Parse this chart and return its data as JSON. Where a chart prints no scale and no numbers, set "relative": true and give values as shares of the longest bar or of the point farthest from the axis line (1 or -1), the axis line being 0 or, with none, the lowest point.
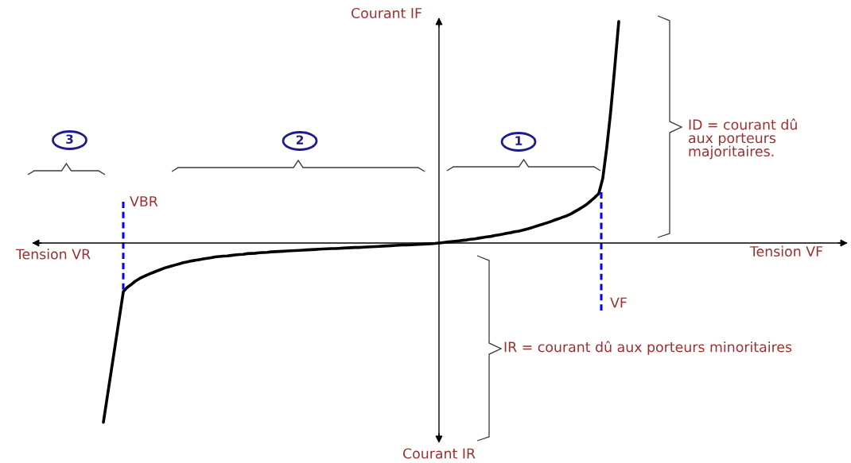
{
  "chart_data": {
    "type": "line",
    "relative": true,
    "ylabel": "Courant IF",
    "categories": [
      null,
      null,
      null,
      null,
      null,
      null,
      null,
      null,
      null,
      null,
      null,
      null,
      null,
      null,
      null,
      null,
      null,
      null,
      null,
      null,
      null,
      null,
      null,
      null,
      null,
      null,
      null,
      null,
      null,
      null,
      null,
      null,
      null,
      null,
      null,
      null,
      null,
      null,
      null,
      null,
      null,
      null,
      null,
      null,
      null,
      null,
      null,
      null,
      null,
      null,
      null,
      null,
      null,
      null,
      null,
      null,
      null,
      null,
      null,
      null,
      null,
      null,
      null,
      null,
      null,
      null,
      null,
      null,
      null,
      null,
      null,
      null,
      null,
      null,
      null,
      null,
      null,
      null,
      null,
      null,
      null,
      null,
      null,
      null,
      null,
      null,
      null,
      null,
      null,
      null,
      null,
      null,
      null,
      null,
      null,
      null,
      null,
      null,
      null,
      null,
      null,
      null,
      null,
      null,
      null,
      null,
      null,
      null,
      null,
      null,
      null,
      null,
      null,
      null,
      null,
      null,
      null,
      null,
      null,
      null,
      null,
      null,
      null,
      null,
      null,
      null,
      null,
      null,
      null,
      null
    ],
    "series": [
      {
        "color": "#000000",
        "values": [
          -0.809,
          -0.691,
          -0.573,
          -0.455,
          -0.337,
          -0.219,
          -0.2,
          -0.187,
          -0.172,
          -0.161,
          -0.152,
          -0.144,
          -0.136,
          -0.129,
          -0.122,
          -0.115,
          -0.109,
          -0.104,
          -0.099,
          -0.094,
          -0.089,
          -0.085,
          -0.081,
          -0.078,
          -0.075,
          -0.072,
          -0.069,
          -0.066,
          -0.063,
          -0.061,
          -0.059,
          -0.058,
          -0.056,
          -0.054,
          -0.052,
          -0.051,
          -0.048,
          -0.047,
          -0.046,
          -0.044,
          -0.043,
          -0.042,
          -0.04,
          -0.039,
          -0.038,
          -0.037,
          -0.036,
          -0.035,
          -0.034,
          -0.033,
          -0.032,
          -0.031,
          -0.03,
          -0.029,
          -0.028,
          -0.027,
          -0.026,
          -0.025,
          -0.025,
          -0.024,
          -0.023,
          -0.022,
          -0.021,
          -0.02,
          -0.02,
          -0.019,
          -0.018,
          -0.017,
          -0.016,
          -0.015,
          -0.014,
          -0.013,
          -0.012,
          -0.011,
          -0.01,
          -0.009,
          -0.009,
          -0.008,
          -0.007,
          -0.006,
          -0.005,
          -0.004,
          -0.003,
          -0.002,
          0,
          0.002,
          0.004,
          0.006,
          0.008,
          0.01,
          0.012,
          0.014,
          0.017,
          0.019,
          0.022,
          0.025,
          0.028,
          0.03,
          0.034,
          0.037,
          0.04,
          0.044,
          0.047,
          0.051,
          0.054,
          0.058,
          0.063,
          0.068,
          0.074,
          0.08,
          0.085,
          0.091,
          0.097,
          0.104,
          0.11,
          0.117,
          0.123,
          0.131,
          0.142,
          0.152,
          0.163,
          0.175,
          0.19,
          0.206,
          0.223,
          0.292,
          0.431,
          0.597,
          0.794,
          1
        ]
      }
    ],
    "annotations": [
      "Tension VF",
      "Tension VR",
      "Courant IR",
      "ID = courant dû\naux porteurs\nmajoritaires.",
      "IR = courant dû aux porteurs minoritaires",
      "1",
      "2",
      "3",
      "VBR",
      "VF"
    ]
  }
}
